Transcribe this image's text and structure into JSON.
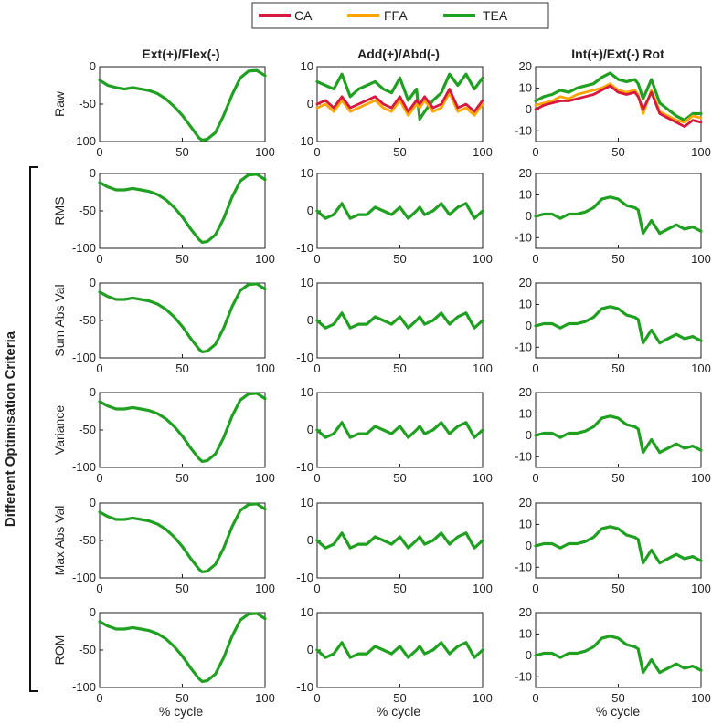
{
  "figure": {
    "group_label": "Different Optimisation Criteria",
    "x_label": "% cycle"
  },
  "legend": [
    {
      "name": "CA",
      "color": "#d7193f"
    },
    {
      "name": "FFA",
      "color": "#ffa500"
    },
    {
      "name": "TEA",
      "color": "#20a020"
    }
  ],
  "columns": [
    {
      "title": "Ext(+)/Flex(-)"
    },
    {
      "title": "Add(+)/Abd(-)"
    },
    {
      "title": "Int(+)/Ext(-) Rot"
    }
  ],
  "rows": [
    {
      "label": "Raw"
    },
    {
      "label": "RMS"
    },
    {
      "label": "Sum Abs Val"
    },
    {
      "label": "Variance"
    },
    {
      "label": "Max Abs Val"
    },
    {
      "label": "ROM"
    }
  ],
  "chart_data": {
    "type": "line",
    "x_axis": {
      "range": [
        0,
        100
      ],
      "ticks": [
        0,
        50,
        100
      ],
      "label": "% cycle"
    },
    "axes": [
      {
        "column": 0,
        "ylim": [
          -100,
          0
        ],
        "ticks": [
          0,
          -50,
          -100
        ]
      },
      {
        "column": 1,
        "ylim": [
          -10,
          10
        ],
        "ticks": [
          10,
          0,
          -10
        ]
      },
      {
        "column": 2,
        "raw_ylim": [
          -15,
          20
        ],
        "raw_ticks": [
          20,
          10,
          0,
          -10
        ],
        "ylim": [
          -15,
          20
        ],
        "ticks": [
          20,
          10,
          0,
          -10
        ]
      }
    ],
    "x": [
      0,
      5,
      10,
      15,
      20,
      25,
      30,
      35,
      40,
      45,
      50,
      55,
      60,
      62,
      65,
      70,
      75,
      80,
      85,
      90,
      95,
      100
    ],
    "series": {
      "flex_raw_TEA": [
        -18,
        -25,
        -28,
        -30,
        -28,
        -30,
        -32,
        -36,
        -43,
        -53,
        -65,
        -80,
        -95,
        -98,
        -97,
        -88,
        -65,
        -38,
        -15,
        -6,
        -5,
        -12
      ],
      "flex_opt_TEA": [
        -12,
        -18,
        -22,
        -22,
        -20,
        -22,
        -24,
        -28,
        -35,
        -45,
        -58,
        -74,
        -88,
        -92,
        -91,
        -82,
        -60,
        -32,
        -10,
        -2,
        -1,
        -8
      ],
      "abd_raw_TEA": [
        6,
        5,
        4,
        8,
        2,
        4,
        5,
        6,
        4,
        3,
        7,
        1,
        4,
        -4,
        -2,
        1,
        3,
        8,
        5,
        8,
        4,
        7
      ],
      "abd_raw_CA": [
        0,
        1,
        -1,
        2,
        -1,
        0,
        1,
        2,
        0,
        -1,
        2,
        -2,
        1,
        0,
        2,
        -1,
        0,
        4,
        -1,
        0,
        -2,
        1
      ],
      "abd_raw_FFA": [
        -1,
        0,
        -2,
        1,
        -2,
        -1,
        0,
        1,
        -1,
        -2,
        1,
        -3,
        0,
        -1,
        1,
        -2,
        -1,
        3,
        -2,
        -1,
        -3,
        0
      ],
      "abd_opt_TEA": [
        0,
        -2,
        -1,
        2,
        -2,
        -1,
        -1,
        1,
        0,
        -1,
        1,
        -2,
        0,
        1,
        -1,
        0,
        2,
        -1,
        1,
        2,
        -2,
        0
      ],
      "rot_raw_TEA": [
        4,
        6,
        7,
        9,
        8,
        10,
        11,
        12,
        15,
        17,
        14,
        13,
        14,
        12,
        5,
        14,
        3,
        0,
        -3,
        -5,
        -2,
        -2
      ],
      "rot_raw_CA": [
        0,
        2,
        3,
        4,
        4,
        5,
        6,
        7,
        9,
        11,
        8,
        7,
        8,
        6,
        0,
        8,
        -2,
        -4,
        -6,
        -8,
        -5,
        -6
      ],
      "rot_raw_FFA": [
        2,
        3,
        4,
        6,
        5,
        7,
        8,
        9,
        10,
        12,
        9,
        8,
        9,
        7,
        -2,
        9,
        -1,
        -3,
        -5,
        -6,
        -3,
        -4
      ],
      "rot_opt_TEA": [
        0,
        1,
        1,
        -1,
        1,
        1,
        2,
        4,
        8,
        9,
        8,
        5,
        4,
        3,
        -8,
        -2,
        -8,
        -6,
        -4,
        -6,
        -5,
        -7
      ]
    }
  }
}
